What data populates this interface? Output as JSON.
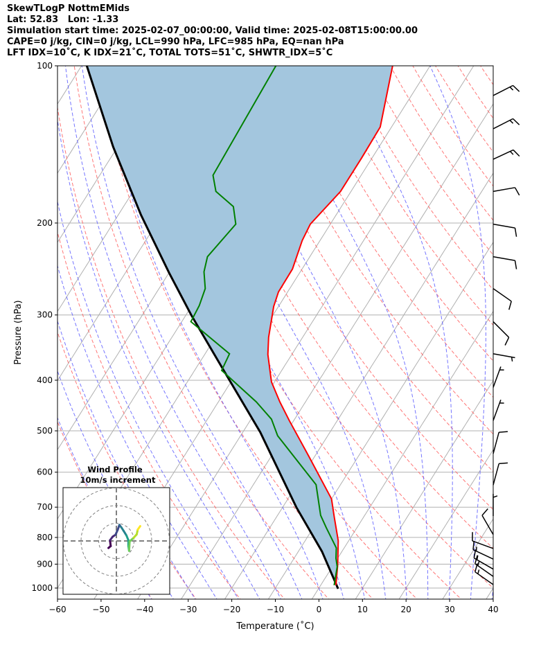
{
  "header": {
    "line1": "SkewTLogP NottmEMids",
    "line2": "Lat: 52.83   Lon: -1.33",
    "line3": "Simulation start time: 2025-02-07_00:00:00, Valid time: 2025-02-08T15:00:00.00",
    "line4": "CAPE=0 j/kg, CIN=0 j/kg, LCL=990 hPa, LFC=985 hPa, EQ=nan hPa",
    "line5": "LFT IDX=10˚C, K IDX=21˚C, TOTAL TOTS=51˚C, SHWTR_IDX=5˚C"
  },
  "chart_data": {
    "type": "line",
    "subtype": "skew-t log-p",
    "xlabel": "Temperature (˚C)",
    "ylabel": "Pressure (hPa)",
    "xlim": [
      -60,
      40
    ],
    "ylim": [
      1050,
      100
    ],
    "xticks": [
      "−60",
      "−50",
      "−40",
      "−30",
      "−20",
      "−10",
      "0",
      "10",
      "20",
      "30",
      "40"
    ],
    "xtick_values": [
      -60,
      -50,
      -40,
      -30,
      -20,
      -10,
      0,
      10,
      20,
      30,
      40
    ],
    "yticks": [
      "100",
      "200",
      "300",
      "400",
      "500",
      "600",
      "700",
      "800",
      "900",
      "1000"
    ],
    "ytick_values": [
      100,
      200,
      300,
      400,
      500,
      600,
      700,
      800,
      900,
      1000
    ],
    "grid": true,
    "colors": {
      "temperature": "#ff0000",
      "dewpoint": "#008000",
      "parcel": "#000000",
      "shade": "#a3c6de",
      "dry_adiabat": "#ff6666",
      "moist_adiabat": "#6666ff",
      "grid": "#b0b0b0"
    },
    "temperature": {
      "p": [
        100,
        131,
        150,
        174,
        201,
        216,
        245,
        271,
        289,
        331,
        357,
        403,
        440,
        478,
        560,
        675,
        732,
        812,
        904,
        988
      ],
      "t": [
        -58.6,
        -52.6,
        -52.4,
        -52.4,
        -54.6,
        -54.1,
        -52.2,
        -52.1,
        -51.1,
        -47.8,
        -45.5,
        -40.7,
        -35.9,
        -31.0,
        -21.3,
        -10.0,
        -6.7,
        -2.4,
        1.0,
        3.5
      ]
    },
    "dewpoint": {
      "p": [
        100,
        162,
        174,
        186,
        201,
        232,
        248,
        267,
        288,
        309,
        356,
        383,
        440,
        475,
        511,
        590,
        634,
        726,
        767,
        838,
        877,
        910,
        988
      ],
      "t": [
        -85.4,
        -84.0,
        -81.0,
        -74.8,
        -71.7,
        -73.5,
        -72.1,
        -69.4,
        -68.3,
        -67.9,
        -54.4,
        -53.8,
        -41.3,
        -35.3,
        -31.5,
        -20.9,
        -15.6,
        -10.1,
        -7.0,
        -1.8,
        -0.4,
        1.1,
        3.1
      ]
    },
    "parcel": {
      "p": [
        100,
        143,
        193,
        249,
        300,
        385,
        503,
        700,
        851,
        1003
      ],
      "t": [
        -128.8,
        -111.0,
        -94.8,
        -80.0,
        -68.8,
        -53.0,
        -36.0,
        -16.9,
        -4.6,
        4.5
      ]
    },
    "wind_barbs": {
      "p": [
        114,
        132,
        151,
        174,
        201,
        232,
        267,
        309,
        356,
        413,
        478,
        553,
        635,
        728,
        790,
        840,
        880,
        920,
        950,
        985
      ],
      "dir": [
        243,
        243,
        245,
        260,
        280,
        280,
        305,
        315,
        280,
        200,
        200,
        195,
        195,
        180,
        150,
        110,
        115,
        120,
        125,
        125
      ],
      "speed_kt": [
        15,
        15,
        15,
        10,
        10,
        10,
        10,
        10,
        5,
        5,
        5,
        10,
        10,
        5,
        10,
        10,
        15,
        15,
        15,
        15
      ]
    },
    "hodograph": {
      "title": "Wind Profile",
      "subtitle": "10m/s increment",
      "ring_step_ms": 10,
      "u": [
        -4.5,
        -3.2,
        -3.6,
        -2.1,
        -0.5,
        0.8,
        1.7,
        2.8,
        4.1,
        5.7,
        6.8,
        6.8,
        7.2,
        7.5,
        9.7,
        11.5,
        12.1,
        13.5
      ],
      "v": [
        -4.0,
        -2.9,
        0.4,
        2.4,
        3.5,
        6.4,
        9.1,
        7.7,
        5.7,
        3.1,
        0.4,
        -2.9,
        -5.6,
        -0.3,
        1.7,
        3.7,
        6.4,
        8.4
      ]
    }
  }
}
